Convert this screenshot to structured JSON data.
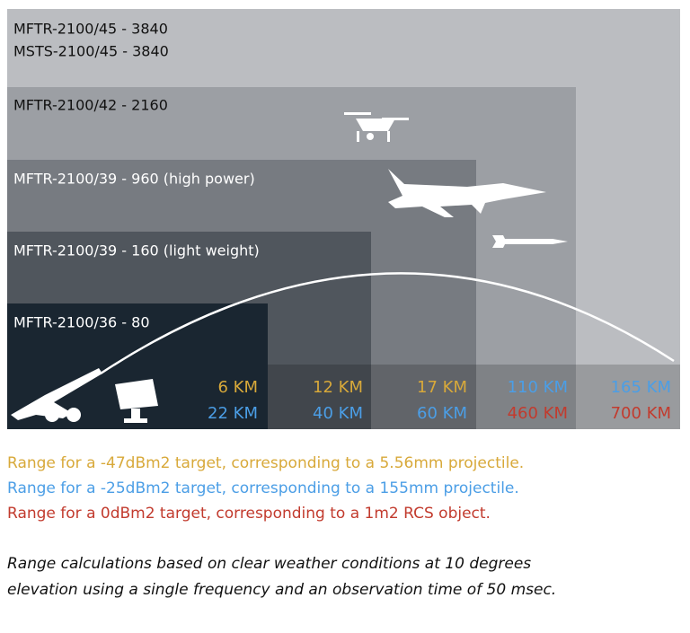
{
  "systems": [
    {
      "lines": [
        "MFTR-2100/45 - 3840",
        "MSTS-2100/45 - 3840"
      ]
    },
    {
      "lines": [
        "MFTR-2100/42 - 2160"
      ]
    },
    {
      "lines": [
        "MFTR-2100/39 - 960 (high power)"
      ]
    },
    {
      "lines": [
        "MFTR-2100/39 - 160 (light weight)"
      ]
    },
    {
      "lines": [
        "MFTR-2100/36 - 80"
      ]
    }
  ],
  "ranges": [
    {
      "upper": "6 KM",
      "lower": "22 KM"
    },
    {
      "upper": "12 KM",
      "lower": "40 KM"
    },
    {
      "upper": "17 KM",
      "lower": "60 KM"
    },
    {
      "upper": "110 KM",
      "lower": "460 KM"
    },
    {
      "upper": "165 KM",
      "lower": "700 KM"
    }
  ],
  "legend": [
    "Range for a -47dBm2 target, corresponding to a 5.56mm projectile.",
    "Range for a -25dBm2 target, corresponding to a 155mm projectile.",
    "Range for a 0dBm2 target, corresponding to a 1m2 RCS object."
  ],
  "notes": [
    "Range calculations based on clear weather conditions at 10 degrees",
    "elevation using a single frequency and an observation time of 50 msec."
  ]
}
